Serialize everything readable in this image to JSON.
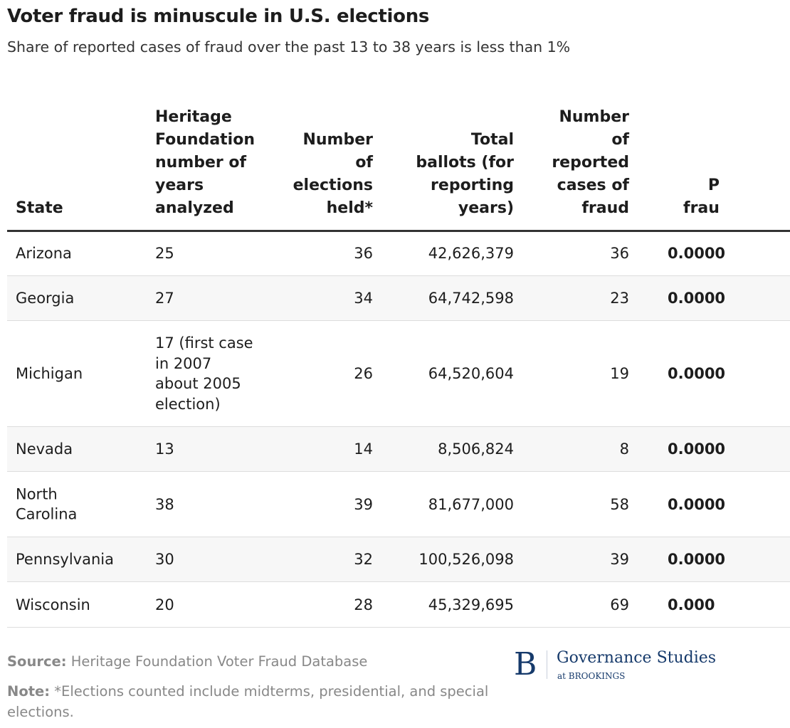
{
  "title": "Voter fraud is minuscule in U.S. elections",
  "subtitle": "Share of reported cases of fraud over the past 13 to 38 years is less than 1%",
  "chart_data": {
    "type": "table",
    "columns": [
      "State",
      "Heritage\nFoundation\nnumber of\nyears\nanalyzed",
      "Number\nof\nelections\nheld*",
      "Total\nballots (for\nreporting\nyears)",
      "Number\nof\nreported\ncases of\nfraud",
      "P\nfrau"
    ],
    "rows": [
      [
        "Arizona",
        "25",
        "36",
        "42,626,379",
        "36",
        "0.0000"
      ],
      [
        "Georgia",
        "27",
        "34",
        "64,742,598",
        "23",
        "0.0000"
      ],
      [
        "Michigan",
        "17 (first case\nin 2007\nabout 2005\nelection)",
        "26",
        "64,520,604",
        "19",
        "0.0000"
      ],
      [
        "Nevada",
        "13",
        "14",
        "8,506,824",
        "8",
        "0.0000"
      ],
      [
        "North\nCarolina",
        "38",
        "39",
        "81,677,000",
        "58",
        "0.0000"
      ],
      [
        "Pennsylvania",
        "30",
        "32",
        "100,526,098",
        "39",
        "0.0000"
      ],
      [
        "Wisconsin",
        "20",
        "28",
        "45,329,695",
        "69",
        "0.000"
      ]
    ]
  },
  "source_label": "Source:",
  "source": "Heritage Foundation Voter Fraud Database",
  "note_label": "Note:",
  "note": "*Elections counted include midterms, presidential, and special elections.",
  "logo": {
    "letter": "B",
    "name": "Governance Studies",
    "sub": "at BROOKINGS"
  },
  "colors": {
    "brand": "#163a6b",
    "stripe": "#f7f7f7"
  }
}
